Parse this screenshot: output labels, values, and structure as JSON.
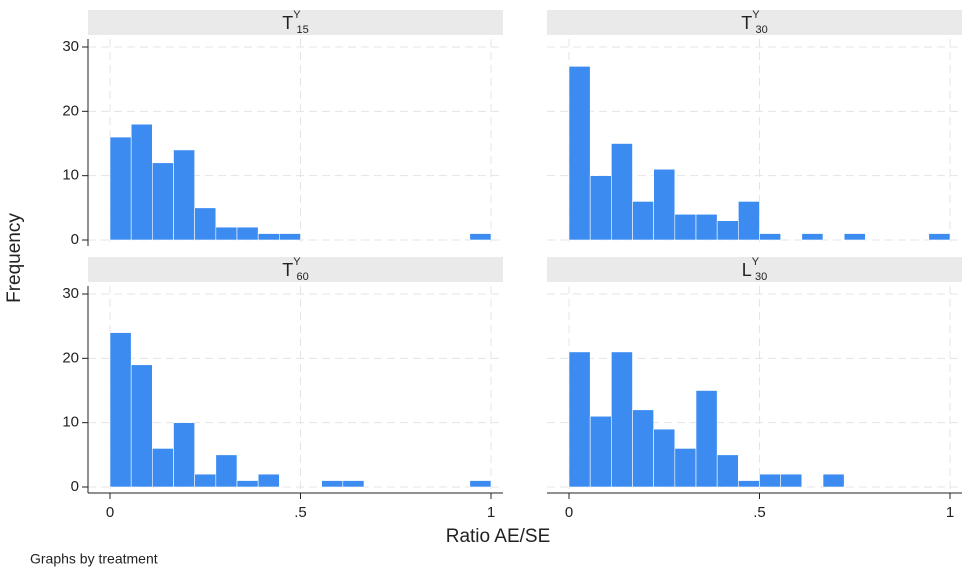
{
  "ylabel": "Frequency",
  "xlabel": "Ratio AE/SE",
  "note": "Graphs by treatment",
  "chart_data": [
    {
      "type": "histogram",
      "title": "T",
      "title_superscript": "Y",
      "title_subscript": "15",
      "color": "#3b8bf1",
      "bins": [
        0,
        0.0556,
        0.1111,
        0.1667,
        0.2222,
        0.2778,
        0.3333,
        0.3889,
        0.4444,
        0.5,
        0.5556,
        0.6111,
        0.6667,
        0.7222,
        0.7778,
        0.8333,
        0.8889,
        0.9444,
        1
      ],
      "values": [
        16,
        18,
        12,
        14,
        5,
        2,
        2,
        1,
        1,
        0,
        0,
        0,
        0,
        0,
        0,
        0,
        0,
        1
      ],
      "xlim": [
        0,
        1
      ],
      "ylim": [
        0,
        30
      ],
      "xticks": [
        0,
        0.5,
        1
      ],
      "yticks": [
        0,
        10,
        20,
        30
      ],
      "grid": true
    },
    {
      "type": "histogram",
      "title": "T",
      "title_superscript": "Y",
      "title_subscript": "30",
      "color": "#3b8bf1",
      "bins": [
        0,
        0.0556,
        0.1111,
        0.1667,
        0.2222,
        0.2778,
        0.3333,
        0.3889,
        0.4444,
        0.5,
        0.5556,
        0.6111,
        0.6667,
        0.7222,
        0.7778,
        0.8333,
        0.8889,
        0.9444,
        1
      ],
      "values": [
        27,
        10,
        15,
        6,
        11,
        4,
        4,
        3,
        6,
        1,
        0,
        1,
        0,
        1,
        0,
        0,
        0,
        1
      ],
      "xlim": [
        0,
        1
      ],
      "ylim": [
        0,
        30
      ],
      "xticks": [
        0,
        0.5,
        1
      ],
      "yticks": [
        0,
        10,
        20,
        30
      ],
      "grid": true
    },
    {
      "type": "histogram",
      "title": "T",
      "title_superscript": "Y",
      "title_subscript": "60",
      "color": "#3b8bf1",
      "bins": [
        0,
        0.0556,
        0.1111,
        0.1667,
        0.2222,
        0.2778,
        0.3333,
        0.3889,
        0.4444,
        0.5,
        0.5556,
        0.6111,
        0.6667,
        0.7222,
        0.7778,
        0.8333,
        0.8889,
        0.9444,
        1
      ],
      "values": [
        24,
        19,
        6,
        10,
        2,
        5,
        1,
        2,
        0,
        0,
        1,
        1,
        0,
        0,
        0,
        0,
        0,
        1
      ],
      "xlim": [
        0,
        1
      ],
      "ylim": [
        0,
        30
      ],
      "xticks": [
        0,
        {
          "value": 0.5,
          "label": ".5"
        },
        1
      ],
      "yticks": [
        0,
        10,
        20,
        30
      ],
      "grid": true
    },
    {
      "type": "histogram",
      "title": "L",
      "title_superscript": "Y",
      "title_subscript": "30",
      "color": "#3b8bf1",
      "bins": [
        0,
        0.0556,
        0.1111,
        0.1667,
        0.2222,
        0.2778,
        0.3333,
        0.3889,
        0.4444,
        0.5,
        0.5556,
        0.6111,
        0.6667,
        0.7222,
        0.7778,
        0.8333,
        0.8889,
        0.9444,
        1
      ],
      "values": [
        21,
        11,
        21,
        12,
        9,
        6,
        15,
        5,
        1,
        2,
        2,
        0,
        2,
        0,
        0,
        0,
        0,
        0
      ],
      "xlim": [
        0,
        1
      ],
      "ylim": [
        0,
        30
      ],
      "xticks": [
        0,
        {
          "value": 0.5,
          "label": ".5"
        },
        1
      ],
      "yticks": [
        0,
        10,
        20,
        30
      ],
      "grid": true
    }
  ]
}
